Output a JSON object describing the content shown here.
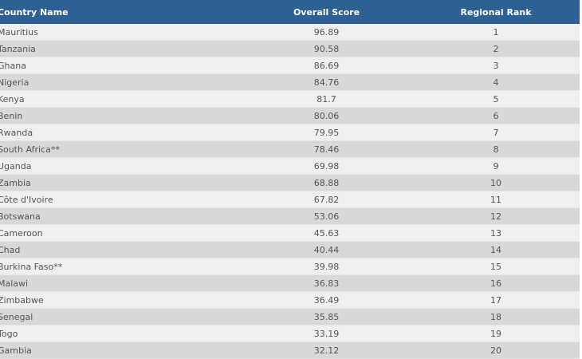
{
  "table": {
    "header": [
      "Country Name",
      "Overall Score",
      "Regional Rank"
    ],
    "rows": [
      [
        "Mauritius",
        96.89,
        1
      ],
      [
        "Tanzania",
        90.58,
        2
      ],
      [
        "Ghana",
        86.69,
        3
      ],
      [
        "Nigeria",
        84.76,
        4
      ],
      [
        "Kenya",
        81.7,
        5
      ],
      [
        "Benin",
        80.06,
        6
      ],
      [
        "Rwanda",
        79.95,
        7
      ],
      [
        "South Africa**",
        78.46,
        8
      ],
      [
        "Uganda",
        69.98,
        9
      ],
      [
        "Zambia",
        68.88,
        10
      ],
      [
        "Côte d'Ivoire",
        67.82,
        11
      ],
      [
        "Botswana",
        53.06,
        12
      ],
      [
        "Cameroon",
        45.63,
        13
      ],
      [
        "Chad",
        40.44,
        14
      ],
      [
        "Burkina Faso**",
        39.98,
        15
      ],
      [
        "Malawi",
        36.83,
        16
      ],
      [
        "Zimbabwe",
        36.49,
        17
      ],
      [
        "Senegal",
        35.85,
        18
      ],
      [
        "Togo",
        33.19,
        19
      ],
      [
        "Gambia",
        32.12,
        20
      ]
    ]
  }
}
